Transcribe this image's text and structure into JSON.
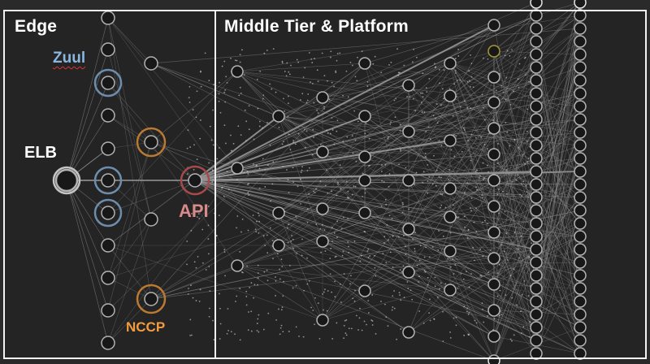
{
  "sections": {
    "edge_title": "Edge",
    "middle_title": "Middle Tier & Platform"
  },
  "labels": {
    "zuul": "Zuul",
    "elb": "ELB",
    "api": "API",
    "nccp": "NCCP"
  },
  "colors": {
    "background": "#2a2a2a",
    "node_fill": "#1a1a1a",
    "node_stroke": "#e8e8e8",
    "edge_line": "#bdbdbd",
    "zuul_ring": "#8ab6df",
    "api_ring": "#d95c5c",
    "nccp_ring": "#f39c3d",
    "highlight_node": "#d8c23a"
  }
}
